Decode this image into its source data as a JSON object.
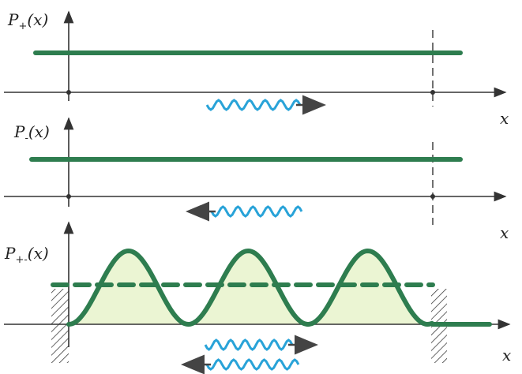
{
  "panels": [
    {
      "label": {
        "main": "P",
        "sub": "+",
        "arg": "(x)"
      },
      "axis_label": "x"
    },
    {
      "label": {
        "main": "P",
        "sub": "-",
        "arg": "(x)"
      },
      "axis_label": "x"
    },
    {
      "label": {
        "main": "P",
        "sub": "+-",
        "arg": "(x)"
      },
      "axis_label": "x"
    }
  ]
}
